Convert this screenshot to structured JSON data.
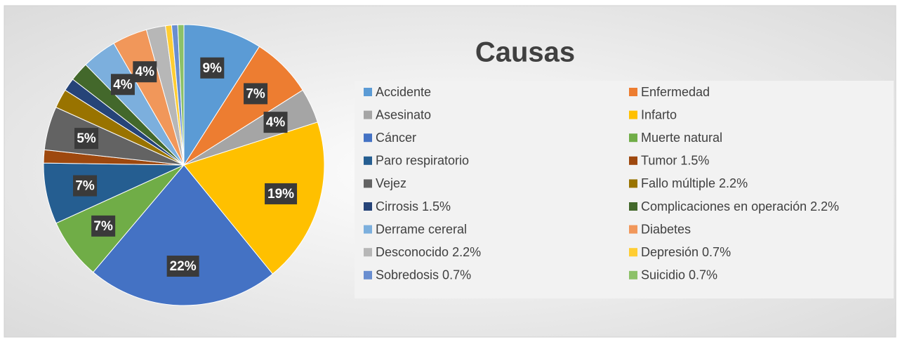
{
  "chart_data": {
    "type": "pie",
    "title": "Causas",
    "categories": [
      "Accidente",
      "Enfermedad",
      "Asesinato",
      "Infarto",
      "Cáncer",
      "Muerte natural",
      "Paro respiratorio",
      "Tumor  1.5%",
      "Vejez",
      "Fallo múltiple  2.2%",
      "Cirrosis  1.5%",
      "Complicaciones en operación  2.2%",
      "Derrame cereral",
      "Diabetes",
      "Desconocido  2.2%",
      "Depresión  0.7%",
      "Sobredosis  0.7%",
      "Suicidio 0.7%"
    ],
    "values": [
      9,
      7,
      4,
      19,
      22,
      7,
      7,
      1.5,
      5,
      2.2,
      1.5,
      2.2,
      4,
      4,
      2.2,
      0.7,
      0.7,
      0.7
    ],
    "value_labels": [
      "9%",
      "7%",
      "4%",
      "19%",
      "22%",
      "7%",
      "7%",
      null,
      "5%",
      null,
      null,
      null,
      "4%",
      "4%",
      null,
      null,
      null,
      null
    ],
    "colors": [
      "#5b9bd5",
      "#ed7d31",
      "#a5a5a5",
      "#ffc000",
      "#4472c4",
      "#70ad47",
      "#255e91",
      "#9e480e",
      "#636363",
      "#997300",
      "#264478",
      "#43682b",
      "#7cafdd",
      "#f1975a",
      "#b7b7b7",
      "#ffcd33",
      "#698ed0",
      "#8cc168"
    ],
    "legend": "right"
  }
}
